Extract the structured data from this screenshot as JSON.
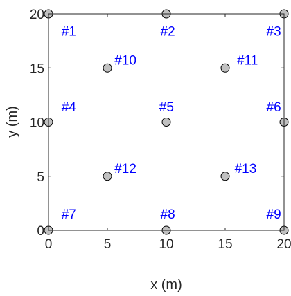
{
  "chart_data": {
    "type": "scatter",
    "xlabel": "x (m)",
    "ylabel": "y (m)",
    "xlim": [
      0,
      20
    ],
    "ylim": [
      0,
      20
    ],
    "x_ticks": [
      0,
      5,
      10,
      15,
      20
    ],
    "y_ticks": [
      0,
      5,
      10,
      15,
      20
    ],
    "x_tick_labels": [
      "0",
      "5",
      "10",
      "15",
      "20"
    ],
    "y_tick_labels": [
      "0",
      "5",
      "10",
      "15",
      "20"
    ],
    "grid": false,
    "marker_fill": "#c0c0c0",
    "marker_edge": "#000000",
    "label_color": "#0000ff",
    "points": [
      {
        "x": 0,
        "y": 20
      },
      {
        "x": 10,
        "y": 20
      },
      {
        "x": 20,
        "y": 20
      },
      {
        "x": 5,
        "y": 15
      },
      {
        "x": 15,
        "y": 15
      },
      {
        "x": 0,
        "y": 10
      },
      {
        "x": 10,
        "y": 10
      },
      {
        "x": 20,
        "y": 10
      },
      {
        "x": 5,
        "y": 5
      },
      {
        "x": 15,
        "y": 5
      },
      {
        "x": 0,
        "y": 0
      },
      {
        "x": 10,
        "y": 0
      },
      {
        "x": 20,
        "y": 0
      }
    ],
    "annotations": [
      {
        "text": "#1",
        "x": 1.1,
        "y": 18.0
      },
      {
        "text": "#2",
        "x": 9.5,
        "y": 18.0
      },
      {
        "text": "#3",
        "x": 18.5,
        "y": 18.0
      },
      {
        "text": "#4",
        "x": 1.1,
        "y": 11.0
      },
      {
        "text": "#5",
        "x": 9.4,
        "y": 11.0
      },
      {
        "text": "#6",
        "x": 18.5,
        "y": 11.0
      },
      {
        "text": "#7",
        "x": 1.1,
        "y": 1.1
      },
      {
        "text": "#8",
        "x": 9.5,
        "y": 1.1
      },
      {
        "text": "#9",
        "x": 18.5,
        "y": 1.1
      },
      {
        "text": "#10",
        "x": 5.6,
        "y": 15.3
      },
      {
        "text": "#11",
        "x": 16.0,
        "y": 15.3
      },
      {
        "text": "#12",
        "x": 5.6,
        "y": 5.3
      },
      {
        "text": "#13",
        "x": 15.8,
        "y": 5.3
      }
    ]
  }
}
